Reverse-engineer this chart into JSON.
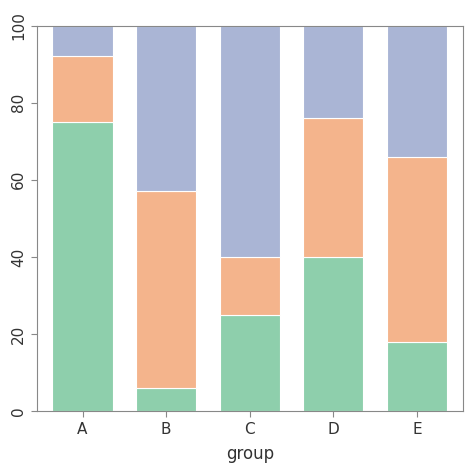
{
  "groups": [
    "A",
    "B",
    "C",
    "D",
    "E"
  ],
  "green": [
    75,
    6,
    25,
    40,
    18
  ],
  "orange": [
    17,
    51,
    15,
    36,
    48
  ],
  "blue": [
    8,
    43,
    60,
    24,
    34
  ],
  "color_green": "#8ecfac",
  "color_orange": "#f4b48c",
  "color_blue": "#aab5d5",
  "bar_width": 0.72,
  "xlabel": "group",
  "ylim": [
    0,
    100
  ],
  "yticks": [
    0,
    20,
    40,
    60,
    80,
    100
  ],
  "background_color": "#ffffff",
  "plot_bg_color": "#ffffff",
  "axis_color": "#888888",
  "tick_label_size": 11,
  "xlabel_size": 12
}
